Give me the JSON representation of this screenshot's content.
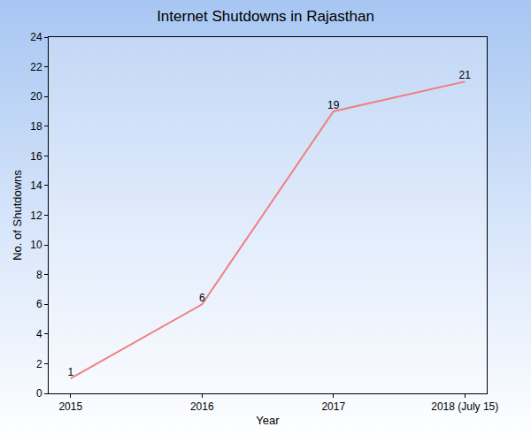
{
  "chart_data": {
    "type": "line",
    "title": "Internet Shutdowns in Rajasthan",
    "x_label": "Year",
    "y_label": "No. of Shutdowns",
    "categories": [
      "2015",
      "2016",
      "2017",
      "2018 (July 15)"
    ],
    "values": [
      1,
      6,
      19,
      21
    ],
    "color": "#ef8080",
    "ylim": [
      0,
      24
    ],
    "yticks": [
      0,
      2,
      4,
      6,
      8,
      10,
      12,
      14,
      16,
      18,
      20,
      22,
      24
    ],
    "grid": false,
    "data_labels": true
  }
}
